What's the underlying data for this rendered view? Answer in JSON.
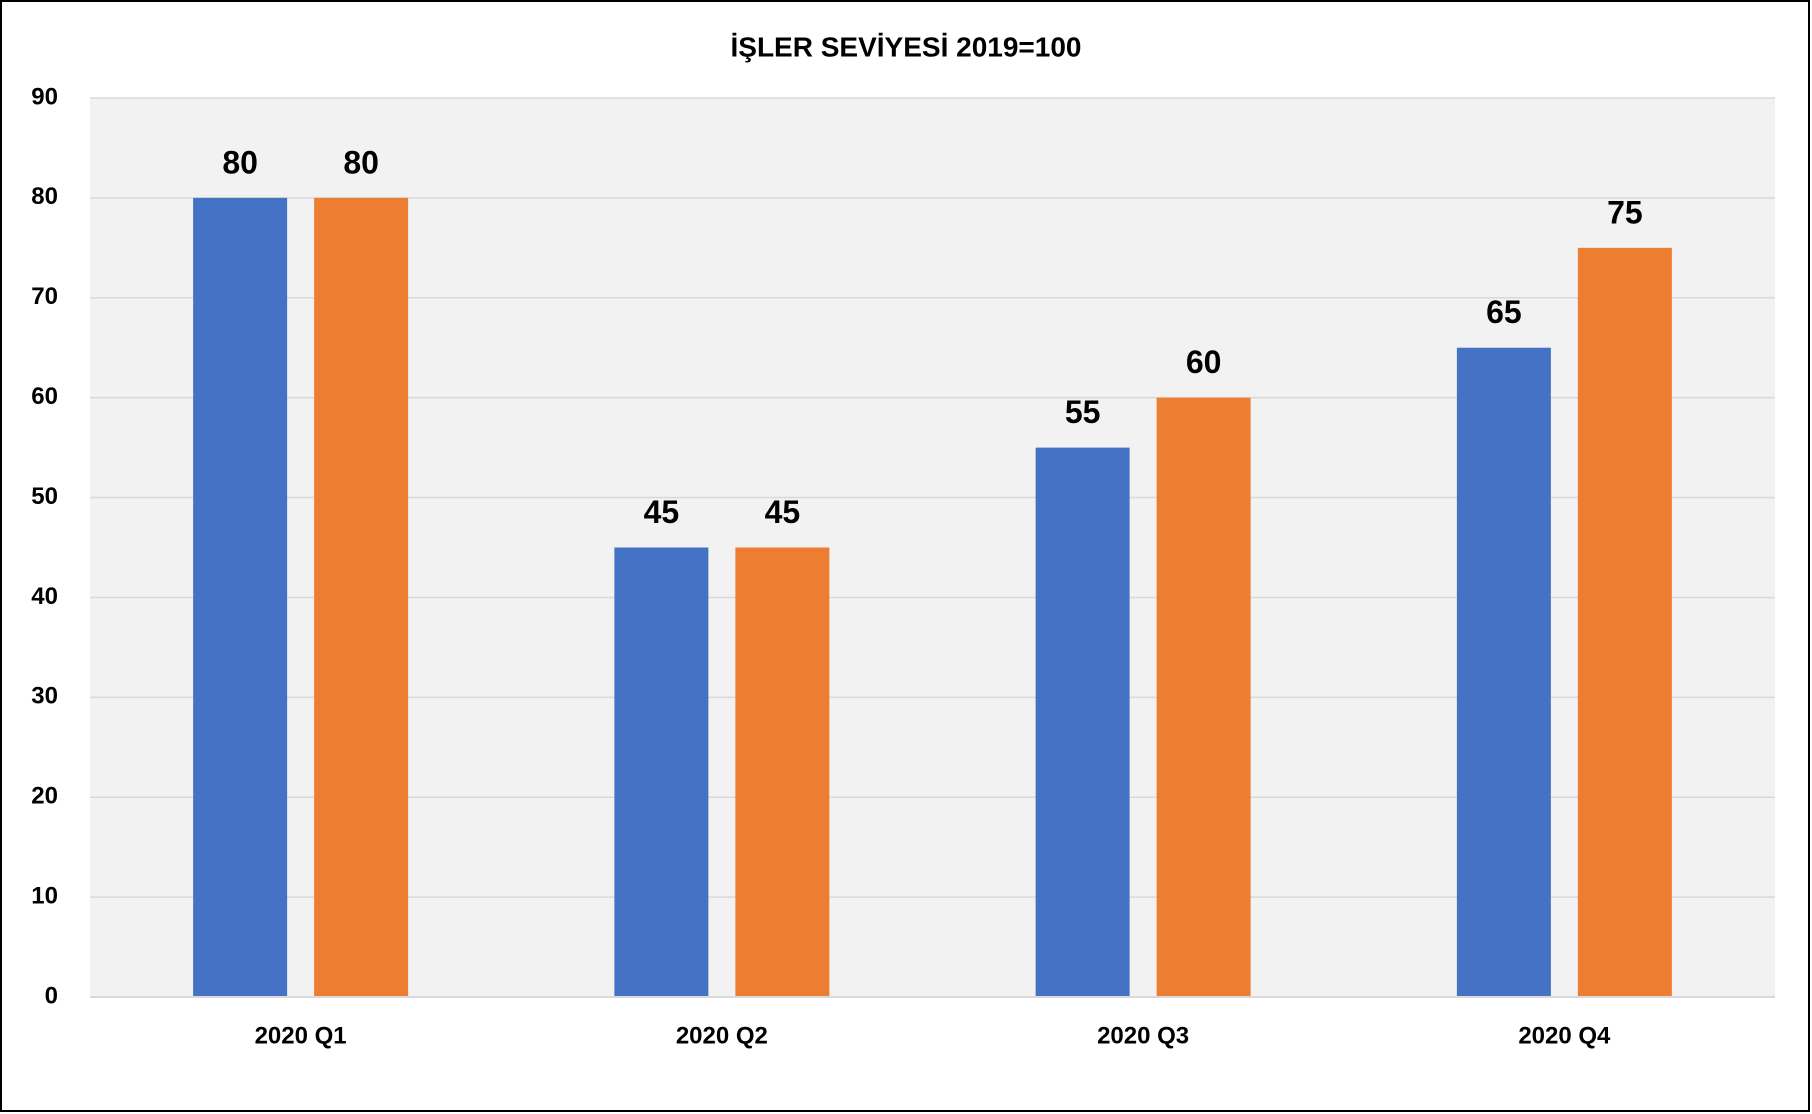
{
  "chart_data": {
    "type": "bar",
    "title": "İŞLER SEVİYESİ 2019=100",
    "categories": [
      "2020 Q1",
      "2020 Q2",
      "2020 Q3",
      "2020 Q4"
    ],
    "series": [
      {
        "color": "#4472c4",
        "values": [
          80,
          45,
          55,
          65
        ]
      },
      {
        "color": "#ed7d31",
        "values": [
          80,
          45,
          60,
          75
        ]
      }
    ],
    "ylim": [
      0,
      90
    ],
    "yticks": [
      0,
      10,
      20,
      30,
      40,
      50,
      60,
      70,
      80,
      90
    ],
    "grid": true
  }
}
